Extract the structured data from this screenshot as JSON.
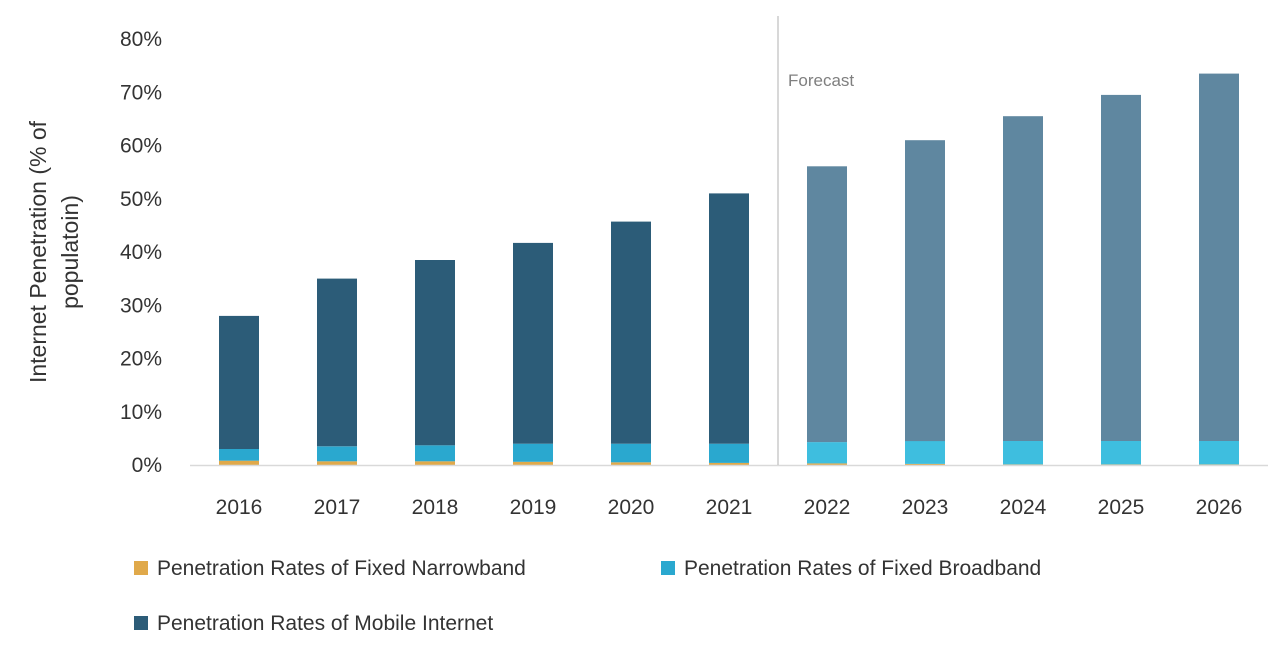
{
  "chart_data": {
    "type": "bar",
    "stacked": true,
    "categories": [
      "2016",
      "2017",
      "2018",
      "2019",
      "2020",
      "2021",
      "2022",
      "2023",
      "2024",
      "2025",
      "2026"
    ],
    "forecast_start": "2022",
    "series": [
      {
        "name": "Penetration Rates of Fixed Narrowband",
        "color": "#e0a94a",
        "forecast_color": "#e0a94a",
        "values": [
          0.8,
          0.7,
          0.7,
          0.6,
          0.5,
          0.4,
          0.3,
          0.2,
          0.1,
          0.1,
          0.1
        ]
      },
      {
        "name": "Penetration Rates of Fixed Broadband",
        "color": "#2aa8cf",
        "forecast_color": "#3ebedf",
        "values": [
          2.2,
          2.8,
          3.0,
          3.4,
          3.5,
          3.6,
          4.0,
          4.3,
          4.4,
          4.4,
          4.4
        ]
      },
      {
        "name": "Penetration Rates of Mobile Internet",
        "color": "#2c5c78",
        "forecast_color": "#5f87a0",
        "values": [
          25.0,
          31.5,
          34.8,
          37.7,
          41.7,
          47.0,
          51.8,
          56.5,
          61.0,
          65.0,
          69.0
        ]
      }
    ],
    "ylabel": "Internet Penetration (% of populatoin)",
    "ylabel_lines": [
      "Internet Penetration (% of",
      "populatoin)"
    ],
    "xlabel": "",
    "ylim": [
      0,
      80
    ],
    "yticks": [
      0,
      10,
      20,
      30,
      40,
      50,
      60,
      70,
      80
    ],
    "ytick_labels": [
      "0%",
      "10%",
      "20%",
      "30%",
      "40%",
      "50%",
      "60%",
      "70%",
      "80%"
    ],
    "annotations": [
      {
        "text": "Forecast",
        "at_category": "2022"
      }
    ],
    "grid": false,
    "legend_position": "bottom-left"
  }
}
